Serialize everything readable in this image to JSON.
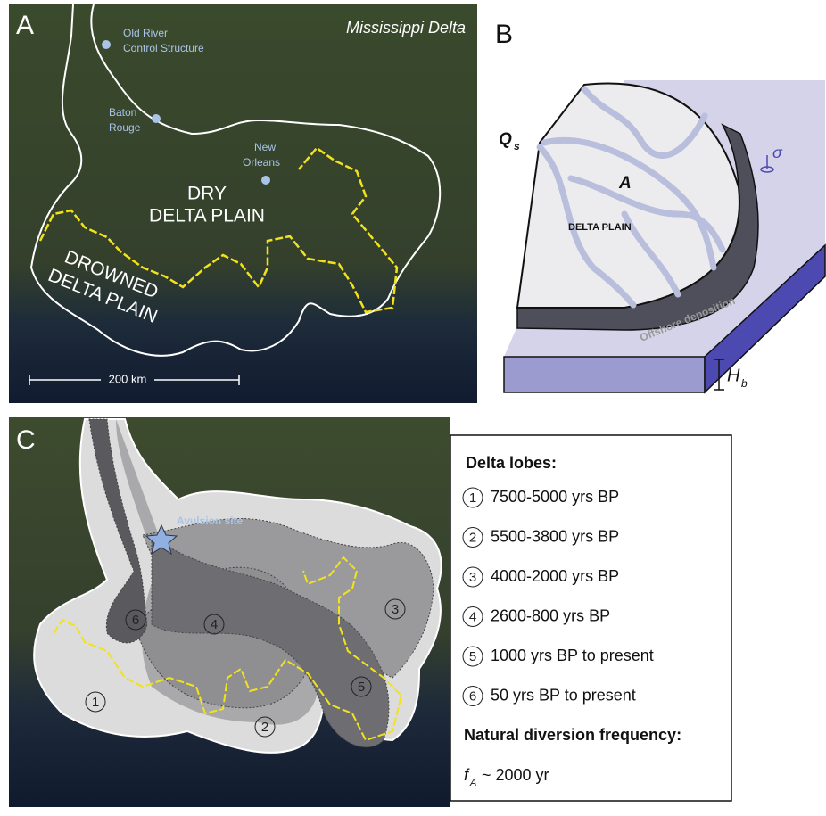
{
  "panel_a": {
    "label": "A",
    "title": "Mississippi Delta",
    "places": [
      {
        "lines": [
          "Old River",
          "Control Structure"
        ]
      },
      {
        "lines": [
          "Baton",
          "Rouge"
        ]
      },
      {
        "lines": [
          "New",
          "Orleans"
        ]
      }
    ],
    "dry_plain": [
      "DRY",
      "DELTA PLAIN"
    ],
    "drowned_plain": [
      "DROWNED",
      "DELTA PLAIN"
    ],
    "scale": "200 km"
  },
  "panel_b": {
    "label": "B",
    "flux": "Q",
    "flux_sub": "s",
    "area": "A",
    "plain": "DELTA PLAIN",
    "offshore": "Offshore deposition",
    "sigma": "σ",
    "depth": "H",
    "depth_sub": "b"
  },
  "panel_c": {
    "label": "C",
    "avulsion": "Avulsion site",
    "legend_title": "Delta lobes:",
    "lobes": [
      {
        "number": "1",
        "period": "7500-5000 yrs BP"
      },
      {
        "number": "2",
        "period": "5500-3800 yrs BP"
      },
      {
        "number": "3",
        "period": "4000-2000 yrs BP"
      },
      {
        "number": "4",
        "period": "2600-800 yrs BP"
      },
      {
        "number": "5",
        "period": "1000 yrs BP to present"
      },
      {
        "number": "6",
        "period": "50 yrs BP to present"
      }
    ],
    "frequency_title": "Natural diversion frequency:",
    "frequency_symbol": "f",
    "frequency_sub": "A",
    "frequency_value": " ~ 2000 yr"
  }
}
